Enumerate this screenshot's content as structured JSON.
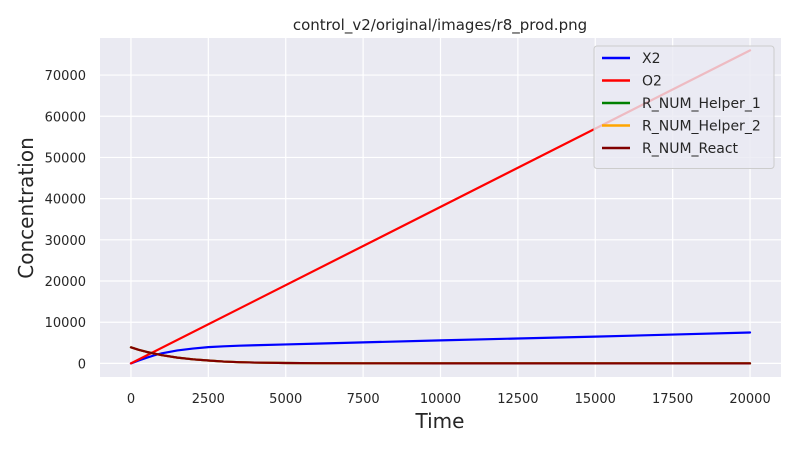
{
  "chart_data": {
    "type": "line",
    "title": "control_v2/original/images/r8_prod.png",
    "xlabel": "Time",
    "ylabel": "Concentration",
    "xlim": [
      -1000,
      21000
    ],
    "ylim": [
      -3300,
      79000
    ],
    "xticks": [
      0,
      2500,
      5000,
      7500,
      10000,
      12500,
      15000,
      17500,
      20000
    ],
    "yticks": [
      0,
      10000,
      20000,
      30000,
      40000,
      50000,
      60000,
      70000
    ],
    "grid": true,
    "legend_position": "top-right",
    "series": [
      {
        "name": "X2",
        "color": "#0000ff",
        "x": [
          0,
          250,
          500,
          750,
          1000,
          1500,
          2000,
          2500,
          3000,
          3500,
          4000,
          5000,
          6000,
          7500,
          10000,
          12500,
          15000,
          17500,
          20000
        ],
        "y": [
          0,
          700,
          1350,
          1950,
          2450,
          3150,
          3600,
          3950,
          4150,
          4300,
          4400,
          4600,
          4800,
          5100,
          5600,
          6050,
          6500,
          7000,
          7500
        ]
      },
      {
        "name": "O2",
        "color": "#ff0000",
        "x": [
          0,
          20000
        ],
        "y": [
          0,
          76000
        ]
      },
      {
        "name": "R_NUM_Helper_1",
        "color": "#008000",
        "x": [
          0,
          250,
          500,
          750,
          1000,
          1500,
          2000,
          2500,
          3000,
          3500,
          4000,
          5000,
          6000,
          7500,
          10000,
          15000,
          20000
        ],
        "y": [
          3900,
          3300,
          2800,
          2400,
          2000,
          1400,
          1000,
          700,
          450,
          300,
          200,
          100,
          50,
          20,
          10,
          5,
          0
        ]
      },
      {
        "name": "R_NUM_Helper_2",
        "color": "#ffa500",
        "x": [
          0,
          250,
          500,
          750,
          1000,
          1500,
          2000,
          2500,
          3000,
          3500,
          4000,
          5000,
          6000,
          7500,
          10000,
          15000,
          20000
        ],
        "y": [
          3900,
          3300,
          2800,
          2400,
          2000,
          1400,
          1000,
          700,
          450,
          300,
          200,
          100,
          50,
          20,
          10,
          5,
          0
        ]
      },
      {
        "name": "R_NUM_React",
        "color": "#800000",
        "x": [
          0,
          250,
          500,
          750,
          1000,
          1500,
          2000,
          2500,
          3000,
          3500,
          4000,
          5000,
          6000,
          7500,
          10000,
          15000,
          20000
        ],
        "y": [
          3900,
          3300,
          2800,
          2400,
          2000,
          1400,
          1000,
          700,
          450,
          300,
          200,
          100,
          50,
          20,
          10,
          5,
          0
        ]
      }
    ]
  }
}
